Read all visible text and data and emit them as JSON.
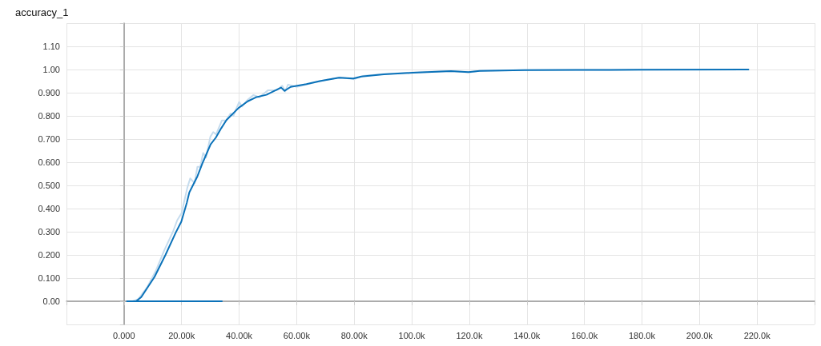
{
  "chart_data": {
    "type": "line",
    "title": "accuracy_1",
    "xlim": [
      -20000,
      240000
    ],
    "xticks": [
      {
        "value": -20000,
        "label": null
      },
      {
        "value": 0,
        "label": "0.000"
      },
      {
        "value": 20000,
        "label": "20.00k"
      },
      {
        "value": 40000,
        "label": "40.00k"
      },
      {
        "value": 60000,
        "label": "60.00k"
      },
      {
        "value": 80000,
        "label": "80.00k"
      },
      {
        "value": 100000,
        "label": "100.0k"
      },
      {
        "value": 120000,
        "label": "120.0k"
      },
      {
        "value": 140000,
        "label": "140.0k"
      },
      {
        "value": 160000,
        "label": "160.0k"
      },
      {
        "value": 180000,
        "label": "180.0k"
      },
      {
        "value": 200000,
        "label": "200.0k"
      },
      {
        "value": 220000,
        "label": "220.0k"
      },
      {
        "value": 240000,
        "label": null
      }
    ],
    "ylim": [
      -0.1,
      1.2
    ],
    "yticks": [
      {
        "value": -0.1,
        "label": null
      },
      {
        "value": 0,
        "label": "0.00"
      },
      {
        "value": 0.1,
        "label": "0.100"
      },
      {
        "value": 0.2,
        "label": "0.200"
      },
      {
        "value": 0.3,
        "label": "0.300"
      },
      {
        "value": 0.4,
        "label": "0.400"
      },
      {
        "value": 0.5,
        "label": "0.500"
      },
      {
        "value": 0.6,
        "label": "0.600"
      },
      {
        "value": 0.7,
        "label": "0.700"
      },
      {
        "value": 0.8,
        "label": "0.800"
      },
      {
        "value": 0.9,
        "label": "0.900"
      },
      {
        "value": 1,
        "label": "1.00"
      },
      {
        "value": 1.1,
        "label": "1.10"
      },
      {
        "value": 1.2,
        "label": null
      }
    ],
    "grid": true,
    "series": [
      {
        "color": "#c6dcee",
        "x": [
          2000,
          3000,
          5000,
          8000,
          11000,
          14000,
          17000,
          18500,
          20000,
          22000,
          23000,
          24500,
          25500,
          26500,
          27500,
          28500,
          30000,
          31000,
          32000,
          34000,
          35500,
          37000,
          38000,
          40000,
          41000,
          43000,
          45000,
          47000,
          50000,
          53000,
          55000,
          56000,
          57000,
          60000,
          65000,
          70000,
          75000,
          80000,
          83000,
          90000,
          100000,
          113000,
          120000,
          124000,
          139000,
          157000,
          179000,
          217000
        ],
        "values": [
          0,
          0,
          0.01,
          0.06,
          0.13,
          0.22,
          0.3,
          0.35,
          0.38,
          0.49,
          0.53,
          0.51,
          0.58,
          0.58,
          0.64,
          0.62,
          0.71,
          0.73,
          0.72,
          0.78,
          0.78,
          0.81,
          0.8,
          0.86,
          0.84,
          0.87,
          0.89,
          0.88,
          0.91,
          0.91,
          0.93,
          0.905,
          0.935,
          0.925,
          0.94,
          0.955,
          0.966,
          0.958,
          0.972,
          0.98,
          0.987,
          0.993,
          0.988,
          0.995,
          0.997,
          0.998,
          0.999,
          1.0
        ]
      },
      {
        "color": "#0b72b9",
        "x": [
          3000,
          4200,
          6000,
          10600,
          14400,
          18000,
          19900,
          21800,
          22700,
          25500,
          27300,
          30100,
          31900,
          33800,
          35600,
          39800,
          43000,
          45800,
          49500,
          52300,
          54600,
          55800,
          57900,
          63400,
          68000,
          74700,
          79700,
          82500,
          90300,
          100300,
          113600,
          119700,
          123600,
          139200,
          157000,
          179000,
          217000
        ],
        "values": [
          0,
          0,
          0.018,
          0.105,
          0.2,
          0.297,
          0.343,
          0.424,
          0.47,
          0.539,
          0.597,
          0.677,
          0.706,
          0.747,
          0.782,
          0.834,
          0.863,
          0.88,
          0.891,
          0.908,
          0.922,
          0.908,
          0.925,
          0.937,
          0.95,
          0.965,
          0.961,
          0.97,
          0.979,
          0.986,
          0.993,
          0.989,
          0.994,
          0.997,
          0.998,
          0.999,
          1.0
        ]
      },
      {
        "color": "#0b72b9",
        "x": [
          1000,
          34000
        ],
        "values": [
          0,
          0
        ]
      }
    ]
  }
}
